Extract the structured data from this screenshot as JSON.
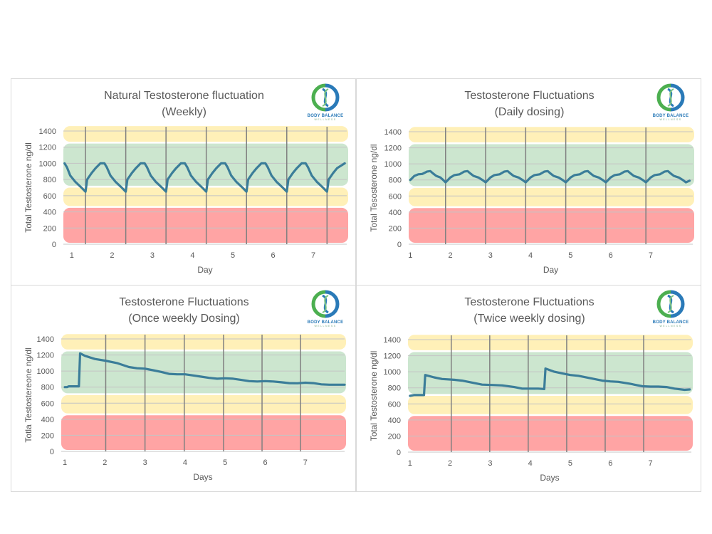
{
  "logo": {
    "brand": "BODY BALANCE",
    "sub": "WELLNESS"
  },
  "colors": {
    "line": "#3b7d99",
    "yellow": "#fff0b8",
    "green": "#cce6cf",
    "red": "#ffa4a4",
    "grid": "#c4c4c4",
    "divider": "#808080"
  },
  "chart_data": [
    {
      "type": "line",
      "title": [
        "Natural Testosterone fluctuation",
        "(Weekly)"
      ],
      "xlabel": "Day",
      "ylabel": "Total Testosterone ng/dl",
      "ylim": [
        0,
        1400
      ],
      "yticks": [
        0,
        200,
        400,
        600,
        800,
        1000,
        1200,
        1400
      ],
      "xlim": [
        0.79,
        7.83
      ],
      "xticks": [
        1,
        2,
        3,
        4,
        5,
        6,
        7
      ],
      "day_dividers": [
        1.34,
        2.34,
        3.34,
        4.34,
        5.34,
        6.34,
        7.34
      ],
      "bands": [
        {
          "zone": "high",
          "range": [
            1250,
            1460
          ]
        },
        {
          "zone": "optimal",
          "range": [
            705,
            1245
          ]
        },
        {
          "zone": "borderline",
          "range": [
            455,
            700
          ]
        },
        {
          "zone": "low",
          "range": [
            0,
            450
          ]
        }
      ],
      "points": [
        [
          0.82,
          1000
        ],
        [
          0.88,
          950
        ],
        [
          0.96,
          850
        ],
        [
          1.09,
          770
        ],
        [
          1.24,
          700
        ],
        [
          1.34,
          650
        ],
        [
          1.38,
          800
        ],
        [
          1.49,
          880
        ],
        [
          1.59,
          940
        ],
        [
          1.71,
          1000
        ],
        [
          1.81,
          1000
        ],
        [
          1.87,
          950
        ],
        [
          1.96,
          850
        ],
        [
          2.09,
          770
        ],
        [
          2.24,
          700
        ],
        [
          2.34,
          650
        ],
        [
          2.38,
          800
        ],
        [
          2.49,
          880
        ],
        [
          2.59,
          940
        ],
        [
          2.71,
          1000
        ],
        [
          2.81,
          1000
        ],
        [
          2.87,
          950
        ],
        [
          2.96,
          850
        ],
        [
          3.09,
          770
        ],
        [
          3.24,
          700
        ],
        [
          3.34,
          650
        ],
        [
          3.38,
          800
        ],
        [
          3.49,
          880
        ],
        [
          3.59,
          940
        ],
        [
          3.71,
          1000
        ],
        [
          3.81,
          1000
        ],
        [
          3.87,
          950
        ],
        [
          3.96,
          850
        ],
        [
          4.09,
          770
        ],
        [
          4.24,
          700
        ],
        [
          4.34,
          650
        ],
        [
          4.38,
          800
        ],
        [
          4.49,
          880
        ],
        [
          4.59,
          940
        ],
        [
          4.71,
          1000
        ],
        [
          4.81,
          1000
        ],
        [
          4.87,
          950
        ],
        [
          4.96,
          850
        ],
        [
          5.09,
          770
        ],
        [
          5.24,
          700
        ],
        [
          5.34,
          650
        ],
        [
          5.38,
          800
        ],
        [
          5.49,
          880
        ],
        [
          5.59,
          940
        ],
        [
          5.71,
          1000
        ],
        [
          5.81,
          1000
        ],
        [
          5.87,
          950
        ],
        [
          5.96,
          850
        ],
        [
          6.09,
          770
        ],
        [
          6.24,
          700
        ],
        [
          6.34,
          650
        ],
        [
          6.38,
          800
        ],
        [
          6.49,
          880
        ],
        [
          6.59,
          940
        ],
        [
          6.71,
          1000
        ],
        [
          6.81,
          1000
        ],
        [
          6.87,
          950
        ],
        [
          6.96,
          850
        ],
        [
          7.09,
          770
        ],
        [
          7.24,
          700
        ],
        [
          7.34,
          650
        ],
        [
          7.38,
          800
        ],
        [
          7.49,
          880
        ],
        [
          7.59,
          940
        ],
        [
          7.78,
          1000
        ]
      ]
    },
    {
      "type": "line",
      "title": [
        "Testosterone Fluctuations",
        "(Daily dosing)"
      ],
      "xlabel": "Day",
      "ylabel": "Total Tesosterone ng/dl",
      "ylim": [
        0,
        1400
      ],
      "yticks": [
        0,
        200,
        400,
        600,
        800,
        1000,
        1200,
        1400
      ],
      "xlim": [
        0.96,
        8.05
      ],
      "xticks": [
        1,
        2,
        3,
        4,
        5,
        6,
        7
      ],
      "day_dividers": [
        1.88,
        2.88,
        3.88,
        4.88,
        5.88,
        6.88
      ],
      "bands": [
        {
          "zone": "high",
          "range": [
            1250,
            1460
          ]
        },
        {
          "zone": "optimal",
          "range": [
            705,
            1245
          ]
        },
        {
          "zone": "borderline",
          "range": [
            455,
            700
          ]
        },
        {
          "zone": "low",
          "range": [
            0,
            450
          ]
        }
      ],
      "points": [
        [
          1.0,
          800
        ],
        [
          1.1,
          850
        ],
        [
          1.2,
          870
        ],
        [
          1.3,
          875
        ],
        [
          1.42,
          905
        ],
        [
          1.5,
          910
        ],
        [
          1.57,
          880
        ],
        [
          1.65,
          850
        ],
        [
          1.75,
          830
        ],
        [
          1.82,
          800
        ],
        [
          1.88,
          770
        ],
        [
          2.0,
          830
        ],
        [
          2.1,
          860
        ],
        [
          2.23,
          870
        ],
        [
          2.35,
          905
        ],
        [
          2.43,
          910
        ],
        [
          2.5,
          880
        ],
        [
          2.58,
          850
        ],
        [
          2.7,
          830
        ],
        [
          2.8,
          800
        ],
        [
          2.88,
          770
        ],
        [
          3.0,
          830
        ],
        [
          3.1,
          860
        ],
        [
          3.23,
          870
        ],
        [
          3.35,
          905
        ],
        [
          3.43,
          910
        ],
        [
          3.5,
          880
        ],
        [
          3.58,
          850
        ],
        [
          3.7,
          830
        ],
        [
          3.8,
          800
        ],
        [
          3.88,
          770
        ],
        [
          4.0,
          830
        ],
        [
          4.1,
          860
        ],
        [
          4.23,
          870
        ],
        [
          4.35,
          905
        ],
        [
          4.43,
          910
        ],
        [
          4.5,
          880
        ],
        [
          4.58,
          850
        ],
        [
          4.7,
          830
        ],
        [
          4.8,
          800
        ],
        [
          4.88,
          770
        ],
        [
          5.0,
          830
        ],
        [
          5.1,
          860
        ],
        [
          5.23,
          870
        ],
        [
          5.35,
          905
        ],
        [
          5.43,
          910
        ],
        [
          5.5,
          880
        ],
        [
          5.58,
          850
        ],
        [
          5.7,
          830
        ],
        [
          5.8,
          800
        ],
        [
          5.88,
          770
        ],
        [
          6.0,
          830
        ],
        [
          6.1,
          860
        ],
        [
          6.23,
          870
        ],
        [
          6.35,
          905
        ],
        [
          6.43,
          910
        ],
        [
          6.5,
          880
        ],
        [
          6.58,
          850
        ],
        [
          6.7,
          830
        ],
        [
          6.8,
          800
        ],
        [
          6.88,
          770
        ],
        [
          7.0,
          830
        ],
        [
          7.1,
          860
        ],
        [
          7.23,
          870
        ],
        [
          7.35,
          905
        ],
        [
          7.43,
          910
        ],
        [
          7.5,
          880
        ],
        [
          7.58,
          850
        ],
        [
          7.7,
          830
        ],
        [
          7.8,
          800
        ],
        [
          7.88,
          770
        ],
        [
          7.97,
          790
        ]
      ]
    },
    {
      "type": "line",
      "title": [
        "Testosterone Fluctuations",
        "(Once weekly Dosing)"
      ],
      "xlabel": "Days",
      "ylabel": "Totla Testostereone ng/dl",
      "ylim": [
        0,
        1400
      ],
      "yticks": [
        0,
        200,
        400,
        600,
        800,
        1000,
        1200,
        1400
      ],
      "xlim": [
        0.91,
        7.98
      ],
      "xticks": [
        1,
        2,
        3,
        4,
        5,
        6,
        7
      ],
      "day_dividers": [
        2.02,
        3.0,
        3.98,
        4.96,
        5.92,
        6.88
      ],
      "bands": [
        {
          "zone": "high",
          "range": [
            1250,
            1460
          ]
        },
        {
          "zone": "optimal",
          "range": [
            705,
            1245
          ]
        },
        {
          "zone": "borderline",
          "range": [
            455,
            700
          ]
        },
        {
          "zone": "low",
          "range": [
            0,
            450
          ]
        }
      ],
      "points": [
        [
          1.0,
          800
        ],
        [
          1.05,
          800
        ],
        [
          1.1,
          810
        ],
        [
          1.35,
          810
        ],
        [
          1.38,
          1220
        ],
        [
          1.5,
          1190
        ],
        [
          1.75,
          1150
        ],
        [
          2.0,
          1130
        ],
        [
          2.3,
          1100
        ],
        [
          2.6,
          1050
        ],
        [
          2.8,
          1035
        ],
        [
          3.0,
          1030
        ],
        [
          3.2,
          1010
        ],
        [
          3.4,
          990
        ],
        [
          3.6,
          965
        ],
        [
          3.8,
          960
        ],
        [
          4.0,
          960
        ],
        [
          4.2,
          945
        ],
        [
          4.4,
          930
        ],
        [
          4.6,
          915
        ],
        [
          4.8,
          905
        ],
        [
          5.0,
          910
        ],
        [
          5.2,
          905
        ],
        [
          5.4,
          890
        ],
        [
          5.6,
          875
        ],
        [
          5.8,
          870
        ],
        [
          6.0,
          875
        ],
        [
          6.2,
          870
        ],
        [
          6.4,
          860
        ],
        [
          6.6,
          850
        ],
        [
          6.8,
          848
        ],
        [
          7.0,
          855
        ],
        [
          7.2,
          850
        ],
        [
          7.4,
          835
        ],
        [
          7.6,
          830
        ],
        [
          7.98,
          830
        ]
      ]
    },
    {
      "type": "line",
      "title": [
        "Testosterone Fluctuations",
        "(Twice weekly dosing)"
      ],
      "xlabel": "Days",
      "ylabel": "Total Testosterone ng/dl",
      "ylim": [
        0,
        1400
      ],
      "yticks": [
        0,
        200,
        400,
        600,
        800,
        1000,
        1200,
        1400
      ],
      "xlim": [
        0.95,
        8.02
      ],
      "xticks": [
        1,
        2,
        3,
        4,
        5,
        6,
        7
      ],
      "day_dividers": [
        2.03,
        2.99,
        3.95,
        4.91,
        5.87,
        6.83
      ],
      "bands": [
        {
          "zone": "high",
          "range": [
            1250,
            1460
          ]
        },
        {
          "zone": "optimal",
          "range": [
            705,
            1245
          ]
        },
        {
          "zone": "borderline",
          "range": [
            455,
            700
          ]
        },
        {
          "zone": "low",
          "range": [
            0,
            450
          ]
        }
      ],
      "points": [
        [
          1.0,
          700
        ],
        [
          1.1,
          710
        ],
        [
          1.35,
          710
        ],
        [
          1.38,
          960
        ],
        [
          1.6,
          930
        ],
        [
          1.8,
          910
        ],
        [
          2.1,
          900
        ],
        [
          2.3,
          890
        ],
        [
          2.6,
          860
        ],
        [
          2.8,
          840
        ],
        [
          3.1,
          835
        ],
        [
          3.3,
          830
        ],
        [
          3.6,
          810
        ],
        [
          3.8,
          790
        ],
        [
          4.0,
          790
        ],
        [
          4.2,
          790
        ],
        [
          4.35,
          785
        ],
        [
          4.38,
          1040
        ],
        [
          4.6,
          1000
        ],
        [
          4.8,
          980
        ],
        [
          5.0,
          960
        ],
        [
          5.2,
          950
        ],
        [
          5.5,
          920
        ],
        [
          5.8,
          890
        ],
        [
          6.0,
          880
        ],
        [
          6.2,
          875
        ],
        [
          6.5,
          850
        ],
        [
          6.8,
          820
        ],
        [
          7.0,
          815
        ],
        [
          7.2,
          815
        ],
        [
          7.4,
          810
        ],
        [
          7.6,
          790
        ],
        [
          7.85,
          775
        ],
        [
          7.98,
          780
        ]
      ]
    }
  ]
}
